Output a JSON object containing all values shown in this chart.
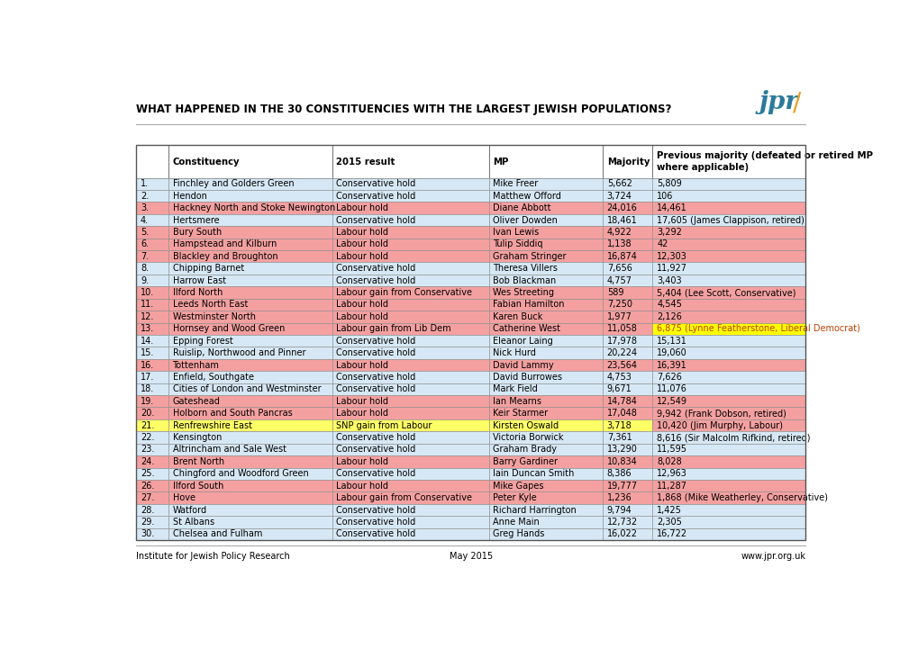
{
  "title": "WHAT HAPPENED IN THE 30 CONSTITUENCIES WITH THE LARGEST JEWISH POPULATIONS?",
  "rows": [
    [
      "1.",
      "Finchley and Golders Green",
      "Conservative hold",
      "Mike Freer",
      "5,662",
      "5,809",
      "conservative"
    ],
    [
      "2.",
      "Hendon",
      "Conservative hold",
      "Matthew Offord",
      "3,724",
      "106",
      "conservative"
    ],
    [
      "3.",
      "Hackney North and Stoke Newington",
      "Labour hold",
      "Diane Abbott",
      "24,016",
      "14,461",
      "labour"
    ],
    [
      "4.",
      "Hertsmere",
      "Conservative hold",
      "Oliver Dowden",
      "18,461",
      "17,605 (James Clappison, retired)",
      "conservative"
    ],
    [
      "5.",
      "Bury South",
      "Labour hold",
      "Ivan Lewis",
      "4,922",
      "3,292",
      "labour"
    ],
    [
      "6.",
      "Hampstead and Kilburn",
      "Labour hold",
      "Tulip Siddiq",
      "1,138",
      "42",
      "labour"
    ],
    [
      "7.",
      "Blackley and Broughton",
      "Labour hold",
      "Graham Stringer",
      "16,874",
      "12,303",
      "labour"
    ],
    [
      "8.",
      "Chipping Barnet",
      "Conservative hold",
      "Theresa Villers",
      "7,656",
      "11,927",
      "conservative"
    ],
    [
      "9.",
      "Harrow East",
      "Conservative hold",
      "Bob Blackman",
      "4,757",
      "3,403",
      "conservative"
    ],
    [
      "10.",
      "Ilford North",
      "Labour gain from Conservative",
      "Wes Streeting",
      "589",
      "5,404 (Lee Scott, Conservative)",
      "labour_gain"
    ],
    [
      "11.",
      "Leeds North East",
      "Labour hold",
      "Fabian Hamilton",
      "7,250",
      "4,545",
      "labour"
    ],
    [
      "12.",
      "Westminster North",
      "Labour hold",
      "Karen Buck",
      "1,977",
      "2,126",
      "labour"
    ],
    [
      "13.",
      "Hornsey and Wood Green",
      "Labour gain from Lib Dem",
      "Catherine West",
      "11,058",
      "6,875 (Lynne Featherstone, Liberal Democrat)",
      "labour_gain_yellow"
    ],
    [
      "14.",
      "Epping Forest",
      "Conservative hold",
      "Eleanor Laing",
      "17,978",
      "15,131",
      "conservative"
    ],
    [
      "15.",
      "Ruislip, Northwood and Pinner",
      "Conservative hold",
      "Nick Hurd",
      "20,224",
      "19,060",
      "conservative"
    ],
    [
      "16.",
      "Tottenham",
      "Labour hold",
      "David Lammy",
      "23,564",
      "16,391",
      "labour"
    ],
    [
      "17.",
      "Enfield, Southgate",
      "Conservative hold",
      "David Burrowes",
      "4,753",
      "7,626",
      "conservative"
    ],
    [
      "18.",
      "Cities of London and Westminster",
      "Conservative hold",
      "Mark Field",
      "9,671",
      "11,076",
      "conservative"
    ],
    [
      "19.",
      "Gateshead",
      "Labour hold",
      "Ian Mearns",
      "14,784",
      "12,549",
      "labour"
    ],
    [
      "20.",
      "Holborn and South Pancras",
      "Labour hold",
      "Keir Starmer",
      "17,048",
      "9,942 (Frank Dobson, retired)",
      "labour"
    ],
    [
      "21.",
      "Renfrewshire East",
      "SNP gain from Labour",
      "Kirsten Oswald",
      "3,718",
      "10,420 (Jim Murphy, Labour)",
      "snp"
    ],
    [
      "22.",
      "Kensington",
      "Conservative hold",
      "Victoria Borwick",
      "7,361",
      "8,616 (Sir Malcolm Rifkind, retired)",
      "conservative"
    ],
    [
      "23.",
      "Altrincham and Sale West",
      "Conservative hold",
      "Graham Brady",
      "13,290",
      "11,595",
      "conservative"
    ],
    [
      "24.",
      "Brent North",
      "Labour hold",
      "Barry Gardiner",
      "10,834",
      "8,028",
      "labour"
    ],
    [
      "25.",
      "Chingford and Woodford Green",
      "Conservative hold",
      "Iain Duncan Smith",
      "8,386",
      "12,963",
      "conservative"
    ],
    [
      "26.",
      "Ilford South",
      "Labour hold",
      "Mike Gapes",
      "19,777",
      "11,287",
      "labour"
    ],
    [
      "27.",
      "Hove",
      "Labour gain from Conservative",
      "Peter Kyle",
      "1,236",
      "1,868 (Mike Weatherley, Conservative)",
      "labour_gain"
    ],
    [
      "28.",
      "Watford",
      "Conservative hold",
      "Richard Harrington",
      "9,794",
      "1,425",
      "conservative"
    ],
    [
      "29.",
      "St Albans",
      "Conservative hold",
      "Anne Main",
      "12,732",
      "2,305",
      "conservative"
    ],
    [
      "30.",
      "Chelsea and Fulham",
      "Conservative hold",
      "Greg Hands",
      "16,022",
      "16,722",
      "conservative"
    ]
  ],
  "color_conservative": "#d6e8f5",
  "color_labour": "#f4a0a0",
  "color_snp": "#ffff66",
  "color_yellow_cell": "#ffff00",
  "color_border": "#888888",
  "footer_left": "Institute for Jewish Policy Research",
  "footer_center": "May 2015",
  "footer_right": "www.jpr.org.uk",
  "jpr_color_teal": "#2b7a9b",
  "jpr_color_orange": "#e8a020",
  "background_color": "#ffffff"
}
